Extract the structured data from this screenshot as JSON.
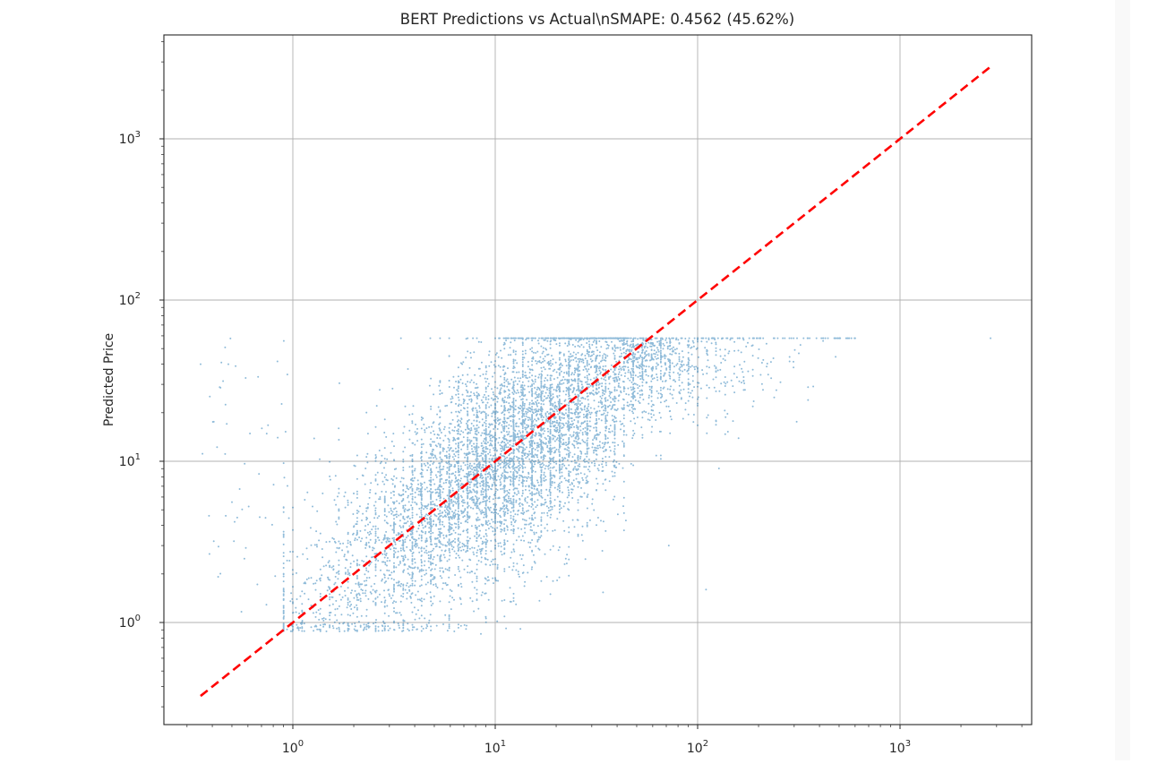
{
  "chart_data": {
    "type": "scatter",
    "title": "BERT Predictions vs Actual\\nSMAPE: 0.4562 (45.62%)",
    "xlabel": "",
    "ylabel": "Predicted Price",
    "xscale": "log",
    "yscale": "log",
    "xlim": [
      0.24,
      4200
    ],
    "ylim": [
      0.24,
      4500
    ],
    "grid": true,
    "x_ticks": [
      1,
      10,
      100,
      1000
    ],
    "x_tick_labels": [
      "10^0",
      "10^1",
      "10^2",
      "10^3"
    ],
    "y_ticks": [
      1,
      10,
      100,
      1000
    ],
    "y_tick_labels": [
      "10^0",
      "10^1",
      "10^2",
      "10^3"
    ],
    "series": [
      {
        "name": "predictions",
        "kind": "scatter",
        "color": "#1f77b4",
        "alpha": 0.5,
        "marker_size": 2,
        "approx_points": 7500,
        "prediction_cap": 58,
        "main_cluster": {
          "log10_center_x": 1.1,
          "log10_spread_x": 0.45,
          "log10_noise_y": 0.28
        },
        "x_range": [
          0.35,
          2800
        ],
        "y_range": [
          0.85,
          58
        ],
        "notable_outliers": [
          [
            2800,
            58
          ],
          [
            600,
            58
          ],
          [
            0.35,
            40
          ],
          [
            0.48,
            40
          ],
          [
            110,
            1.6
          ],
          [
            72,
            3.0
          ],
          [
            8.5,
            0.85
          ]
        ]
      },
      {
        "name": "perfect prediction (y = x)",
        "kind": "line",
        "style": "dashed",
        "color": "#ff0000",
        "linewidth": 2.5,
        "points": [
          [
            0.35,
            0.35
          ],
          [
            2800,
            2800
          ]
        ]
      }
    ]
  },
  "axes": {
    "x_tick_labels": [
      {
        "base": "10",
        "exp": "0"
      },
      {
        "base": "10",
        "exp": "1"
      },
      {
        "base": "10",
        "exp": "2"
      },
      {
        "base": "10",
        "exp": "3"
      }
    ],
    "y_tick_labels": [
      {
        "base": "10",
        "exp": "0"
      },
      {
        "base": "10",
        "exp": "1"
      },
      {
        "base": "10",
        "exp": "2"
      },
      {
        "base": "10",
        "exp": "3"
      }
    ]
  }
}
